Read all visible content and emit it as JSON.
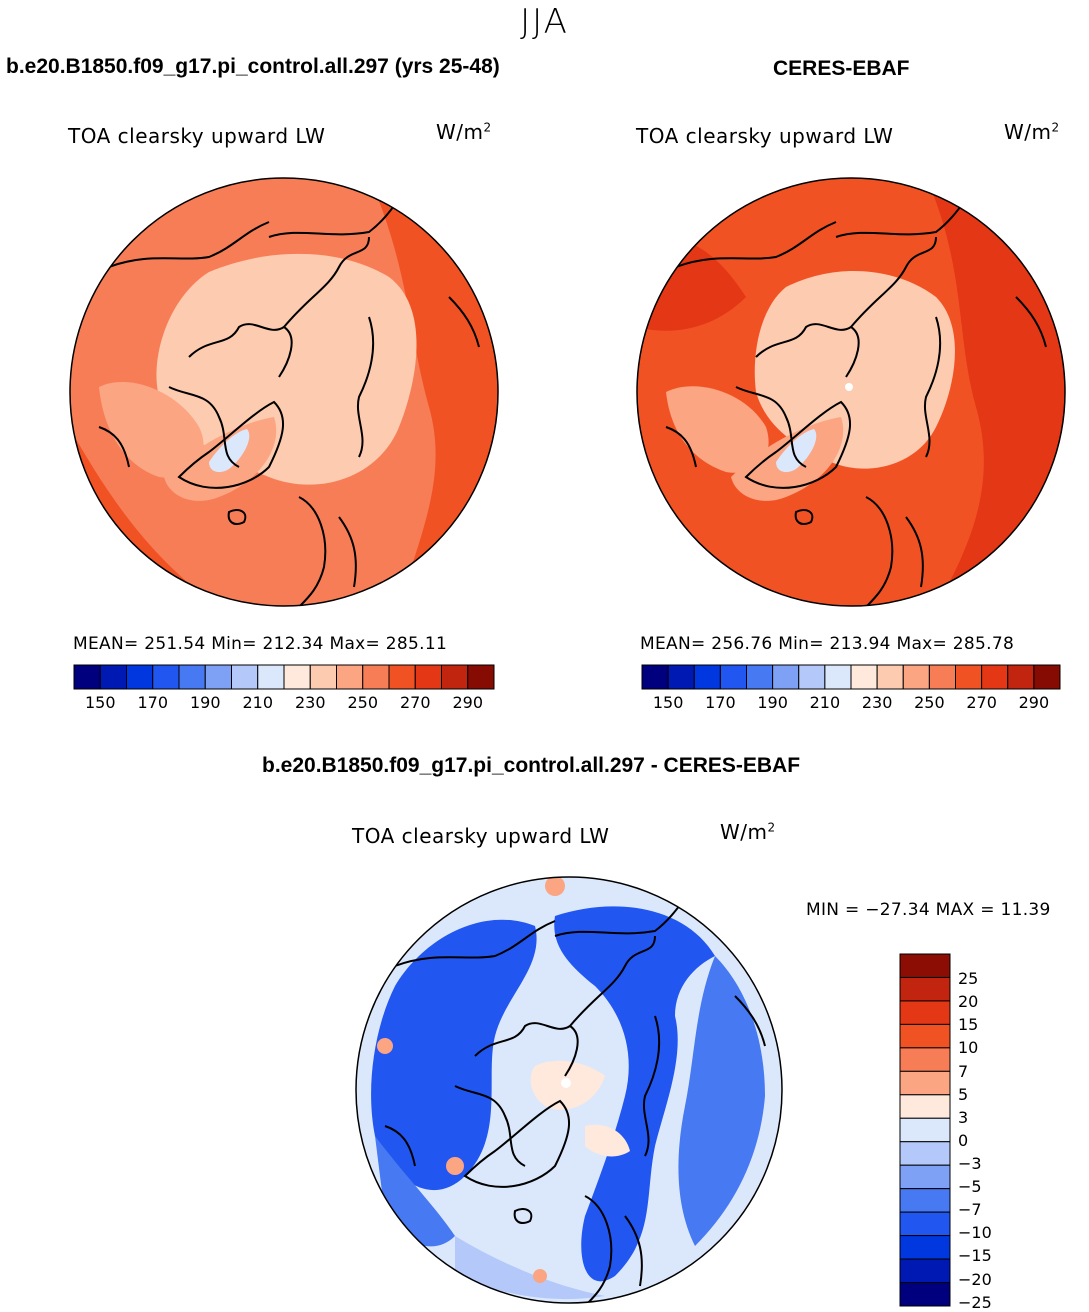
{
  "season": "JJA",
  "panels": [
    {
      "case_title": "b.e20.B1850.f09_g17.pi_control.all.297 (yrs 25-48)",
      "variable": "TOA clearsky upward LW",
      "units_base": "W/m",
      "units_exp": "2",
      "stats": "MEAN= 251.54   Min= 212.34   Max= 285.11",
      "colorbar": {
        "colors": [
          "#00007f",
          "#0019b3",
          "#0037df",
          "#2256f0",
          "#4679f2",
          "#7ea0f5",
          "#b4c9fa",
          "#dbe8fc",
          "#fee9dc",
          "#fdcbb0",
          "#fba583",
          "#f77d57",
          "#f15224",
          "#e33715",
          "#c12510",
          "#860b03"
        ],
        "tick_labels": [
          "150",
          "170",
          "190",
          "210",
          "230",
          "250",
          "270",
          "290"
        ]
      },
      "map_fill": {
        "ocean_base": "#f77d57",
        "warm_bands": "#f15224",
        "arctic": "#fdcbb0",
        "greenland_coast": "#fba583",
        "greenland_core": "#dbe8fc"
      }
    },
    {
      "case_title": "CERES-EBAF",
      "variable": "TOA clearsky upward LW",
      "units_base": "W/m",
      "units_exp": "2",
      "stats": "MEAN= 256.76   Min= 213.94   Max= 285.78",
      "colorbar": {
        "colors": [
          "#00007f",
          "#0019b3",
          "#0037df",
          "#2256f0",
          "#4679f2",
          "#7ea0f5",
          "#b4c9fa",
          "#dbe8fc",
          "#fee9dc",
          "#fdcbb0",
          "#fba583",
          "#f77d57",
          "#f15224",
          "#e33715",
          "#c12510",
          "#860b03"
        ],
        "tick_labels": [
          "150",
          "170",
          "190",
          "210",
          "230",
          "250",
          "270",
          "290"
        ]
      },
      "map_fill": {
        "ocean_base": "#f15224",
        "warm_bands": "#e33715",
        "arctic": "#fdcbb0",
        "greenland_coast": "#fba583",
        "greenland_core": "#dbe8fc"
      }
    }
  ],
  "diff": {
    "case_title": "b.e20.B1850.f09_g17.pi_control.all.297 - CERES-EBAF",
    "variable": "TOA clearsky upward LW",
    "units_base": "W/m",
    "units_exp": "2",
    "stats": "MIN = −27.34 MAX =  11.39",
    "colorbar": {
      "colors_top_to_bottom": [
        "#8b0d04",
        "#c12510",
        "#e33715",
        "#f15224",
        "#f77d57",
        "#fba583",
        "#fee9dc",
        "#dbe8fc",
        "#b4c9fa",
        "#7ea0f5",
        "#4679f2",
        "#2256f0",
        "#0037df",
        "#0019b3",
        "#00007f"
      ],
      "tick_labels": [
        "25",
        "20",
        "15",
        "10",
        "7",
        "5",
        "3",
        "0",
        "−3",
        "−5",
        "−7",
        "−10",
        "−15",
        "−20",
        "−25"
      ]
    },
    "map_fill": {
      "background": "#dbe8fc",
      "strong_neg": "#2256f0",
      "mid_neg": "#4679f2",
      "weak_neg": "#b4c9fa",
      "weak_pos": "#fee9dc",
      "pos": "#fba583"
    }
  }
}
